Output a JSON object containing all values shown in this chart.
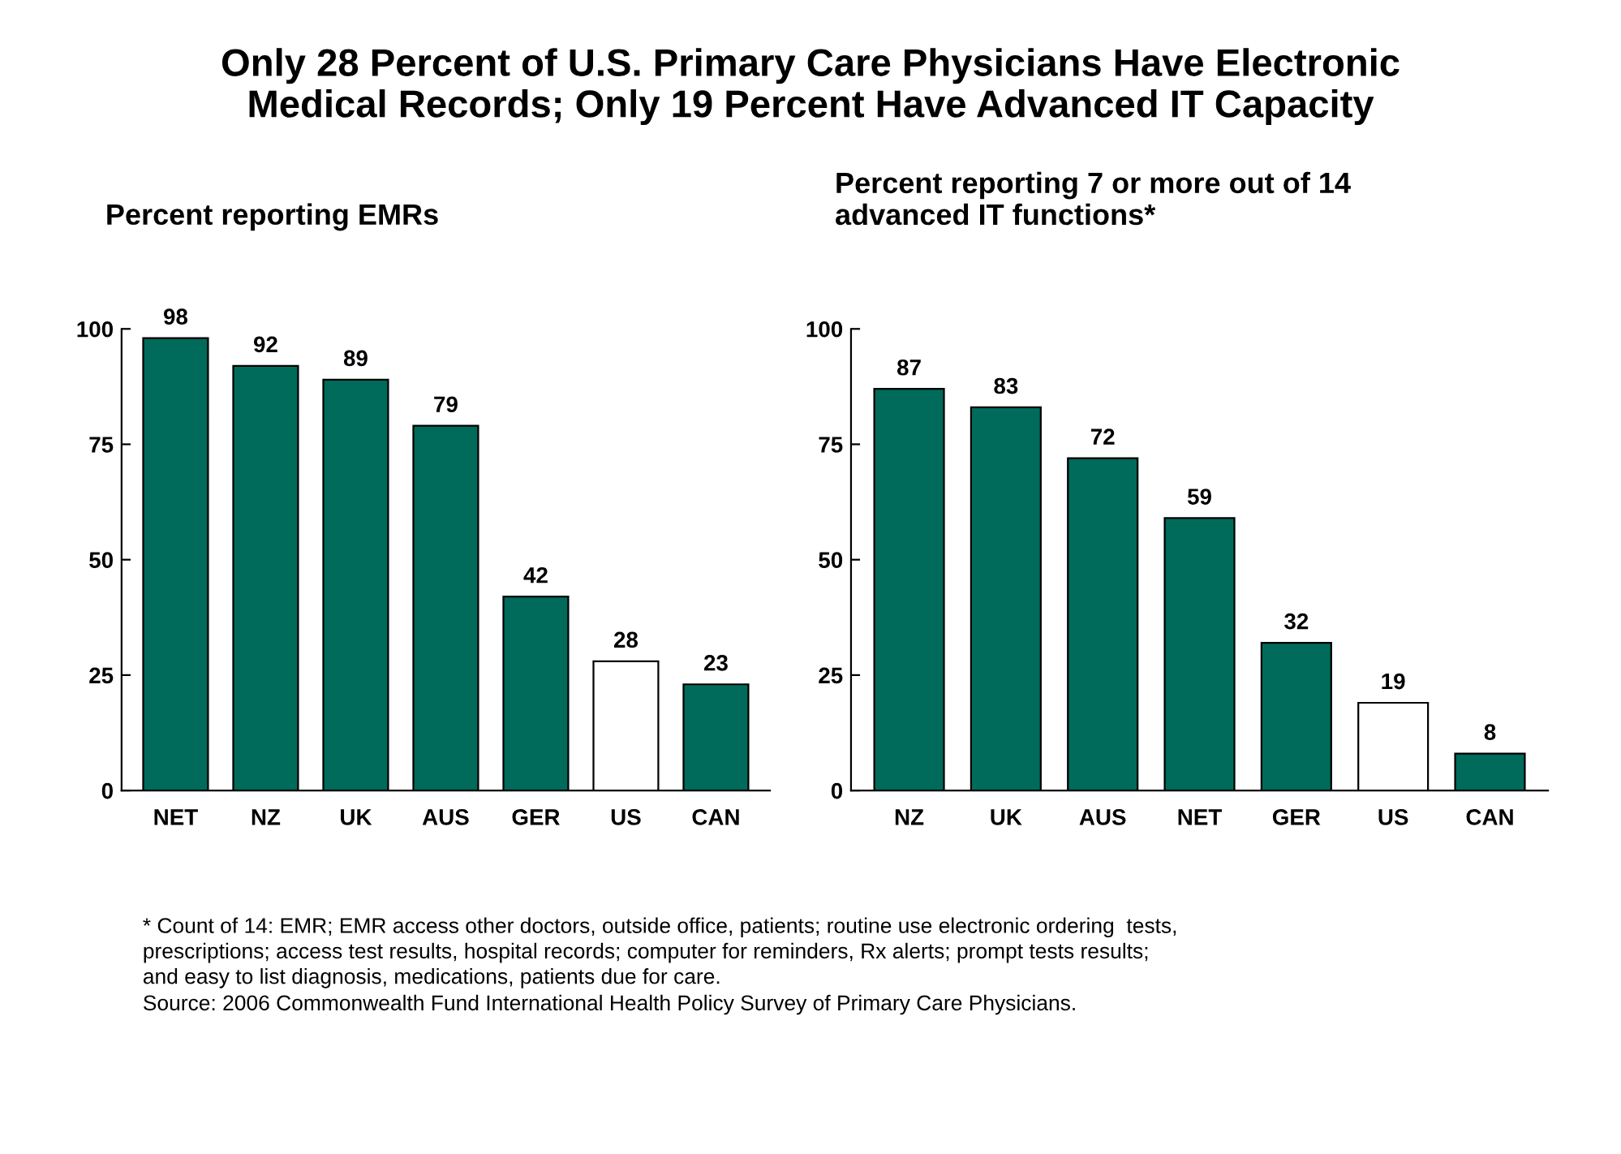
{
  "chart_data": [
    {
      "type": "bar",
      "title": "Only 28 Percent of U.S. Primary Care Physicians Have Electronic\nMedical Records; Only 19 Percent Have Advanced IT Capacity",
      "subtitle": "Percent reporting EMRs",
      "categories": [
        "NET",
        "NZ",
        "UK",
        "AUS",
        "GER",
        "US",
        "CAN"
      ],
      "values": [
        98,
        92,
        89,
        79,
        42,
        28,
        23
      ],
      "colors": [
        "#006b5a",
        "#006b5a",
        "#006b5a",
        "#006b5a",
        "#006b5a",
        "#ffffff",
        "#006b5a"
      ],
      "ylim": [
        0,
        100
      ],
      "yticks": [
        0,
        25,
        50,
        75,
        100
      ],
      "data_labels": true,
      "grid": false,
      "legend": false
    },
    {
      "type": "bar",
      "subtitle": "Percent reporting 7 or more out of 14\nadvanced IT functions*",
      "categories": [
        "NZ",
        "UK",
        "AUS",
        "NET",
        "GER",
        "US",
        "CAN"
      ],
      "values": [
        87,
        83,
        72,
        59,
        32,
        19,
        8
      ],
      "colors": [
        "#006b5a",
        "#006b5a",
        "#006b5a",
        "#006b5a",
        "#006b5a",
        "#ffffff",
        "#006b5a"
      ],
      "ylim": [
        0,
        100
      ],
      "yticks": [
        0,
        25,
        50,
        75,
        100
      ],
      "data_labels": true,
      "grid": false,
      "legend": false,
      "annotations": [
        "* Count of 14: EMR; EMR access other doctors, outside office, patients; routine use electronic ordering  tests,\nprescriptions; access test results, hospital records; computer for reminders, Rx alerts; prompt tests results;\nand easy to list diagnosis, medications, patients due for care.",
        "Source: 2006 Commonwealth Fund International Health Policy Survey of Primary Care Physicians."
      ]
    }
  ]
}
